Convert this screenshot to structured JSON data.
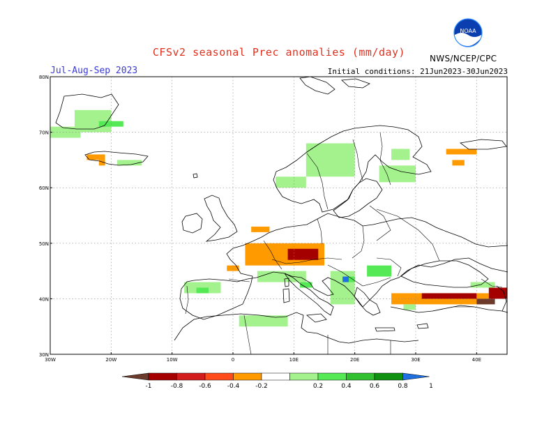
{
  "header": {
    "title": "CFSv2 seasonal Prec anomalies (mm/day)",
    "season": "Jul-Aug-Sep 2023",
    "initial_conditions": "Initial conditions: 21Jun2023-30Jun2023",
    "agency": "NWS/NCEP/CPC",
    "logo_text": "NOAA"
  },
  "map": {
    "extent": {
      "lon_min": -30,
      "lon_max": 45,
      "lat_min": 30,
      "lat_max": 80
    },
    "lat_labels": [
      "30N",
      "40N",
      "50N",
      "60N",
      "70N",
      "80N"
    ],
    "lon_labels": [
      "30W",
      "20W",
      "10W",
      "0",
      "10E",
      "20E",
      "30E",
      "40E"
    ],
    "anomaly_regions": [
      {
        "lon": [
          -26,
          -20
        ],
        "lat": [
          70,
          74
        ],
        "value": 0.3
      },
      {
        "lon": [
          -30,
          -25
        ],
        "lat": [
          69,
          71
        ],
        "value": 0.3
      },
      {
        "lon": [
          -22,
          -18
        ],
        "lat": [
          71,
          72
        ],
        "value": 0.5
      },
      {
        "lon": [
          -24,
          -21
        ],
        "lat": [
          65,
          66
        ],
        "value": -0.3
      },
      {
        "lon": [
          -22,
          -21
        ],
        "lat": [
          64,
          65
        ],
        "value": -0.3
      },
      {
        "lon": [
          -19,
          -15
        ],
        "lat": [
          64,
          65
        ],
        "value": 0.3
      },
      {
        "lon": [
          12,
          20
        ],
        "lat": [
          62,
          68
        ],
        "value": 0.3
      },
      {
        "lon": [
          7,
          12
        ],
        "lat": [
          60,
          62
        ],
        "value": 0.3
      },
      {
        "lon": [
          24,
          30
        ],
        "lat": [
          61,
          64
        ],
        "value": 0.3
      },
      {
        "lon": [
          26,
          29
        ],
        "lat": [
          65,
          67
        ],
        "value": 0.3
      },
      {
        "lon": [
          35,
          40
        ],
        "lat": [
          66,
          67
        ],
        "value": -0.3
      },
      {
        "lon": [
          36,
          38
        ],
        "lat": [
          64,
          65
        ],
        "value": -0.3
      },
      {
        "lon": [
          3,
          6
        ],
        "lat": [
          52,
          53
        ],
        "value": -0.3
      },
      {
        "lon": [
          2,
          15
        ],
        "lat": [
          46,
          50
        ],
        "value": -0.3
      },
      {
        "lon": [
          9,
          14
        ],
        "lat": [
          47,
          49
        ],
        "value": -0.6
      },
      {
        "lon": [
          -1,
          1
        ],
        "lat": [
          45,
          46
        ],
        "value": -0.3
      },
      {
        "lon": [
          -8,
          -2
        ],
        "lat": [
          41,
          43
        ],
        "value": 0.3
      },
      {
        "lon": [
          -6,
          -4
        ],
        "lat": [
          41,
          42
        ],
        "value": 0.5
      },
      {
        "lon": [
          4,
          12
        ],
        "lat": [
          43,
          45
        ],
        "value": 0.3
      },
      {
        "lon": [
          11,
          13
        ],
        "lat": [
          42,
          43
        ],
        "value": 0.5
      },
      {
        "lon": [
          16,
          20
        ],
        "lat": [
          39,
          45
        ],
        "value": 0.3
      },
      {
        "lon": [
          18,
          20
        ],
        "lat": [
          43,
          44
        ],
        "value": 0.5
      },
      {
        "lon": [
          18,
          19
        ],
        "lat": [
          43,
          44
        ],
        "value": 1.1
      },
      {
        "lon": [
          22,
          26
        ],
        "lat": [
          44,
          46
        ],
        "value": 0.5
      },
      {
        "lon": [
          1,
          9
        ],
        "lat": [
          35,
          37
        ],
        "value": 0.3
      },
      {
        "lon": [
          26,
          42
        ],
        "lat": [
          39,
          41
        ],
        "value": -0.3
      },
      {
        "lon": [
          31,
          40
        ],
        "lat": [
          40,
          41
        ],
        "value": -0.6
      },
      {
        "lon": [
          40,
          43
        ],
        "lat": [
          39,
          40
        ],
        "value": -1.1
      },
      {
        "lon": [
          42,
          45
        ],
        "lat": [
          40,
          42
        ],
        "value": -0.6
      },
      {
        "lon": [
          39,
          43
        ],
        "lat": [
          42,
          43
        ],
        "value": 0.3
      },
      {
        "lon": [
          28,
          30
        ],
        "lat": [
          38,
          39
        ],
        "value": 0.3
      }
    ]
  },
  "legend": {
    "labels": [
      "-1",
      "-0.8",
      "-0.6",
      "-0.4",
      "-0.2",
      "0.2",
      "0.4",
      "0.6",
      "0.8",
      "1"
    ],
    "colors": [
      "#6b3a2a",
      "#a50000",
      "#d31d1d",
      "#ff4a1a",
      "#ff9a00",
      "#ffffff",
      "#a4f28e",
      "#55e955",
      "#30c030",
      "#109010",
      "#1f6fe0"
    ]
  }
}
